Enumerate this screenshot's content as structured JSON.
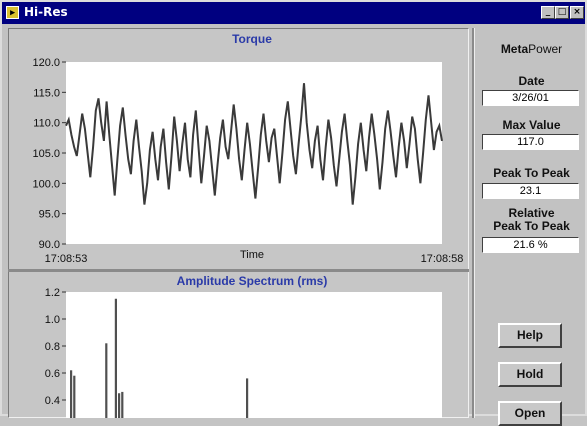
{
  "window": {
    "title": "Hi-Res",
    "minimize_glyph": "_",
    "maximize_glyph": "□",
    "close_glyph": "×",
    "icon": "app-icon"
  },
  "side": {
    "brand_bold": "Meta",
    "brand_rest": "Power",
    "date_label": "Date",
    "date_value": "3/26/01",
    "max_label": "Max Value",
    "max_value": "117.0",
    "p2p_label": "Peak To Peak",
    "p2p_value": "23.1",
    "rel_label_1": "Relative",
    "rel_label_2": "Peak To Peak",
    "rel_value": "21.6 %",
    "help_label": "Help",
    "hold_label": "Hold",
    "open_label": "Open"
  },
  "chart_data": [
    {
      "type": "line",
      "title": "Torque",
      "xlabel": "Time",
      "x_ticks": [
        "17:08:53",
        "17:08:58"
      ],
      "y_ticks": [
        "120.0",
        "115.0",
        "110.0",
        "105.0",
        "100.0",
        "95.0",
        "90.0"
      ],
      "ylim": [
        90,
        120
      ],
      "series_color": "#3a3a3a",
      "title_color": "#2a3aa8",
      "values": [
        109.5,
        110.5,
        108.0,
        106.0,
        104.5,
        108.0,
        111.5,
        109.0,
        105.0,
        101.0,
        106.0,
        112.0,
        114.0,
        110.0,
        107.0,
        113.5,
        108.0,
        103.0,
        98.0,
        104.0,
        109.5,
        112.5,
        108.0,
        104.0,
        101.5,
        107.0,
        110.5,
        106.0,
        102.0,
        96.5,
        100.0,
        105.5,
        108.5,
        104.0,
        100.5,
        106.0,
        109.0,
        103.5,
        99.0,
        104.5,
        111.0,
        107.0,
        102.0,
        106.5,
        110.0,
        104.0,
        101.0,
        108.0,
        112.0,
        106.0,
        100.0,
        104.5,
        109.5,
        107.0,
        102.5,
        98.0,
        103.0,
        107.5,
        110.5,
        106.0,
        104.0,
        108.5,
        113.0,
        109.0,
        104.0,
        100.5,
        105.5,
        110.0,
        106.5,
        102.0,
        97.5,
        102.5,
        108.0,
        111.5,
        107.0,
        103.5,
        107.5,
        109.0,
        104.5,
        100.0,
        105.0,
        110.5,
        113.5,
        109.0,
        104.5,
        101.5,
        106.5,
        111.0,
        116.5,
        110.0,
        105.5,
        102.5,
        107.0,
        109.5,
        104.0,
        100.5,
        106.0,
        110.5,
        107.5,
        103.0,
        99.5,
        104.0,
        108.5,
        111.5,
        107.0,
        103.0,
        96.5,
        101.0,
        106.5,
        110.0,
        105.5,
        102.0,
        107.5,
        111.5,
        108.0,
        104.0,
        99.0,
        103.5,
        109.0,
        112.0,
        108.5,
        104.5,
        101.0,
        106.0,
        110.0,
        107.0,
        102.5,
        106.5,
        111.0,
        109.0,
        104.0,
        100.0,
        105.0,
        110.5,
        114.5,
        110.0,
        105.5,
        108.5,
        109.5,
        107.0
      ]
    },
    {
      "type": "bar",
      "title": "Amplitude Spectrum (rms)",
      "y_ticks": [
        "1.2",
        "1.0",
        "0.8",
        "0.6",
        "0.4"
      ],
      "ylim": [
        0,
        1.2
      ],
      "series_color": "#505050",
      "title_color": "#2a3aa8",
      "values": [
        0.62,
        0.58,
        0.0,
        0.0,
        0.0,
        0.0,
        0.0,
        0.0,
        0.0,
        0.0,
        0.0,
        0.82,
        0.0,
        0.0,
        1.15,
        0.45,
        0.46,
        0.0,
        0.0,
        0.0,
        0.0,
        0.0,
        0.0,
        0.0,
        0.0,
        0.0,
        0.0,
        0.0,
        0.0,
        0.0,
        0.0,
        0.0,
        0.0,
        0.0,
        0.0,
        0.0,
        0.0,
        0.0,
        0.0,
        0.0,
        0.0,
        0.0,
        0.0,
        0.0,
        0.0,
        0.0,
        0.0,
        0.0,
        0.0,
        0.0,
        0.0,
        0.0,
        0.0,
        0.0,
        0.0,
        0.56
      ]
    }
  ]
}
